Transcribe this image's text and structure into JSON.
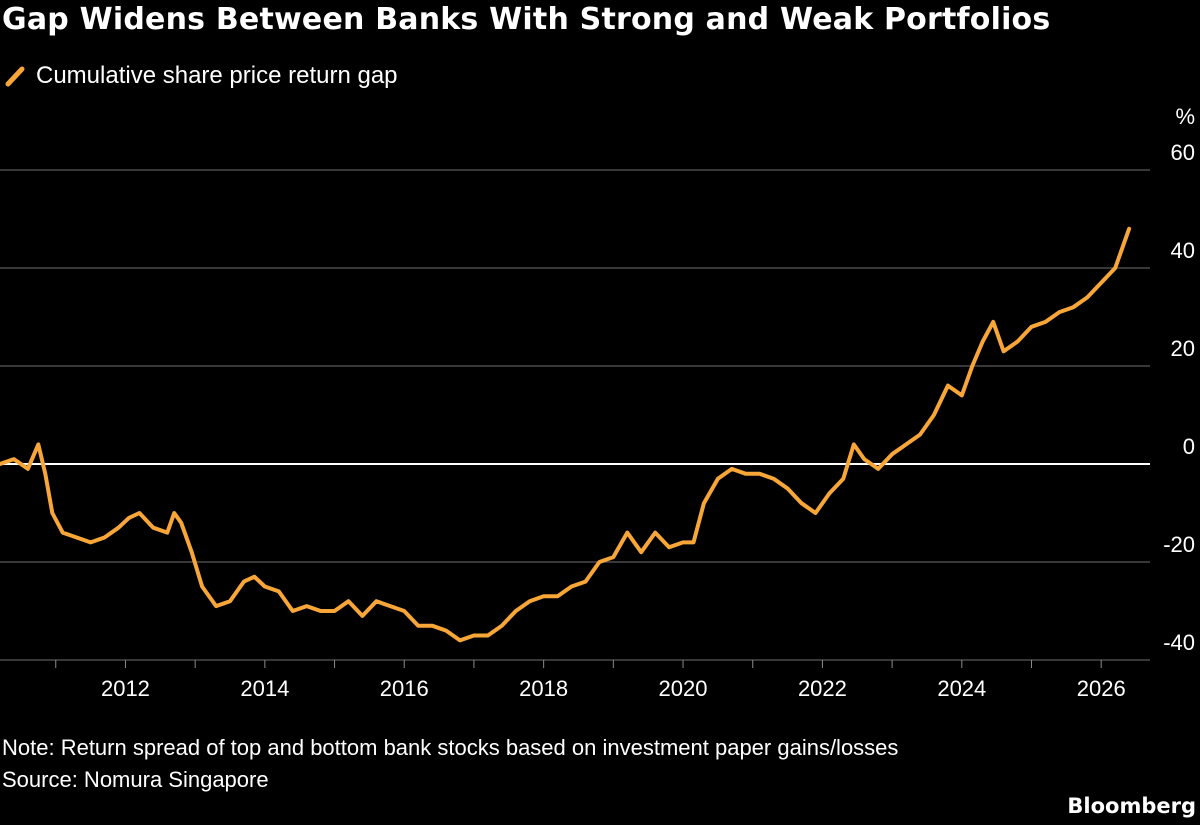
{
  "header": {
    "title": "Gap Widens Between Banks With Strong and Weak Portfolios"
  },
  "legend": {
    "label": "Cumulative share price return gap",
    "color": "#F7A637"
  },
  "footer": {
    "note": "Note: Return spread of top and bottom bank stocks based on investment paper gains/losses",
    "source": "Source: Nomura Singapore",
    "brand": "Bloomberg"
  },
  "chart_data": {
    "type": "line",
    "title": "Gap Widens Between Banks With Strong and Weak Portfolios",
    "ylabel": "%",
    "xlabel": "",
    "xlim": [
      2010.2,
      2026.7
    ],
    "ylim": [
      -40,
      60
    ],
    "yticks": [
      "60",
      "40",
      "20",
      "0",
      "-20",
      "-40"
    ],
    "xticks": [
      "2012",
      "2014",
      "2016",
      "2018",
      "2020",
      "2022",
      "2024",
      "2026"
    ],
    "grid": true,
    "legend_position": "top-left",
    "series": [
      {
        "name": "Cumulative share price return gap",
        "color": "#F7A637",
        "x": [
          2010.2,
          2010.4,
          2010.6,
          2010.75,
          2010.85,
          2010.95,
          2011.1,
          2011.3,
          2011.5,
          2011.7,
          2011.9,
          2012.05,
          2012.2,
          2012.4,
          2012.6,
          2012.7,
          2012.8,
          2012.95,
          2013.1,
          2013.3,
          2013.5,
          2013.7,
          2013.85,
          2014.0,
          2014.2,
          2014.4,
          2014.6,
          2014.8,
          2015.0,
          2015.2,
          2015.4,
          2015.6,
          2015.8,
          2016.0,
          2016.2,
          2016.4,
          2016.6,
          2016.8,
          2017.0,
          2017.2,
          2017.4,
          2017.6,
          2017.8,
          2018.0,
          2018.2,
          2018.4,
          2018.6,
          2018.8,
          2019.0,
          2019.2,
          2019.4,
          2019.6,
          2019.8,
          2020.0,
          2020.15,
          2020.3,
          2020.5,
          2020.7,
          2020.9,
          2021.1,
          2021.3,
          2021.5,
          2021.7,
          2021.9,
          2022.1,
          2022.3,
          2022.45,
          2022.6,
          2022.8,
          2023.0,
          2023.2,
          2023.4,
          2023.6,
          2023.8,
          2024.0,
          2024.15,
          2024.3,
          2024.45,
          2024.6,
          2024.8,
          2025.0,
          2025.2,
          2025.4,
          2025.6,
          2025.8,
          2026.0,
          2026.2,
          2026.4
        ],
        "y": [
          0,
          1,
          -1,
          4,
          -2,
          -10,
          -14,
          -15,
          -16,
          -15,
          -13,
          -11,
          -10,
          -13,
          -14,
          -10,
          -12,
          -18,
          -25,
          -29,
          -28,
          -24,
          -23,
          -25,
          -26,
          -30,
          -29,
          -30,
          -30,
          -28,
          -31,
          -28,
          -29,
          -30,
          -33,
          -33,
          -34,
          -36,
          -35,
          -35,
          -33,
          -30,
          -28,
          -27,
          -27,
          -25,
          -24,
          -20,
          -19,
          -14,
          -18,
          -14,
          -17,
          -16,
          -16,
          -8,
          -3,
          -1,
          -2,
          -2,
          -3,
          -5,
          -8,
          -10,
          -6,
          -3,
          4,
          1,
          -1,
          2,
          4,
          6,
          10,
          16,
          14,
          20,
          25,
          29,
          23,
          25,
          28,
          29,
          31,
          32,
          34,
          37,
          40,
          48
        ]
      }
    ]
  }
}
